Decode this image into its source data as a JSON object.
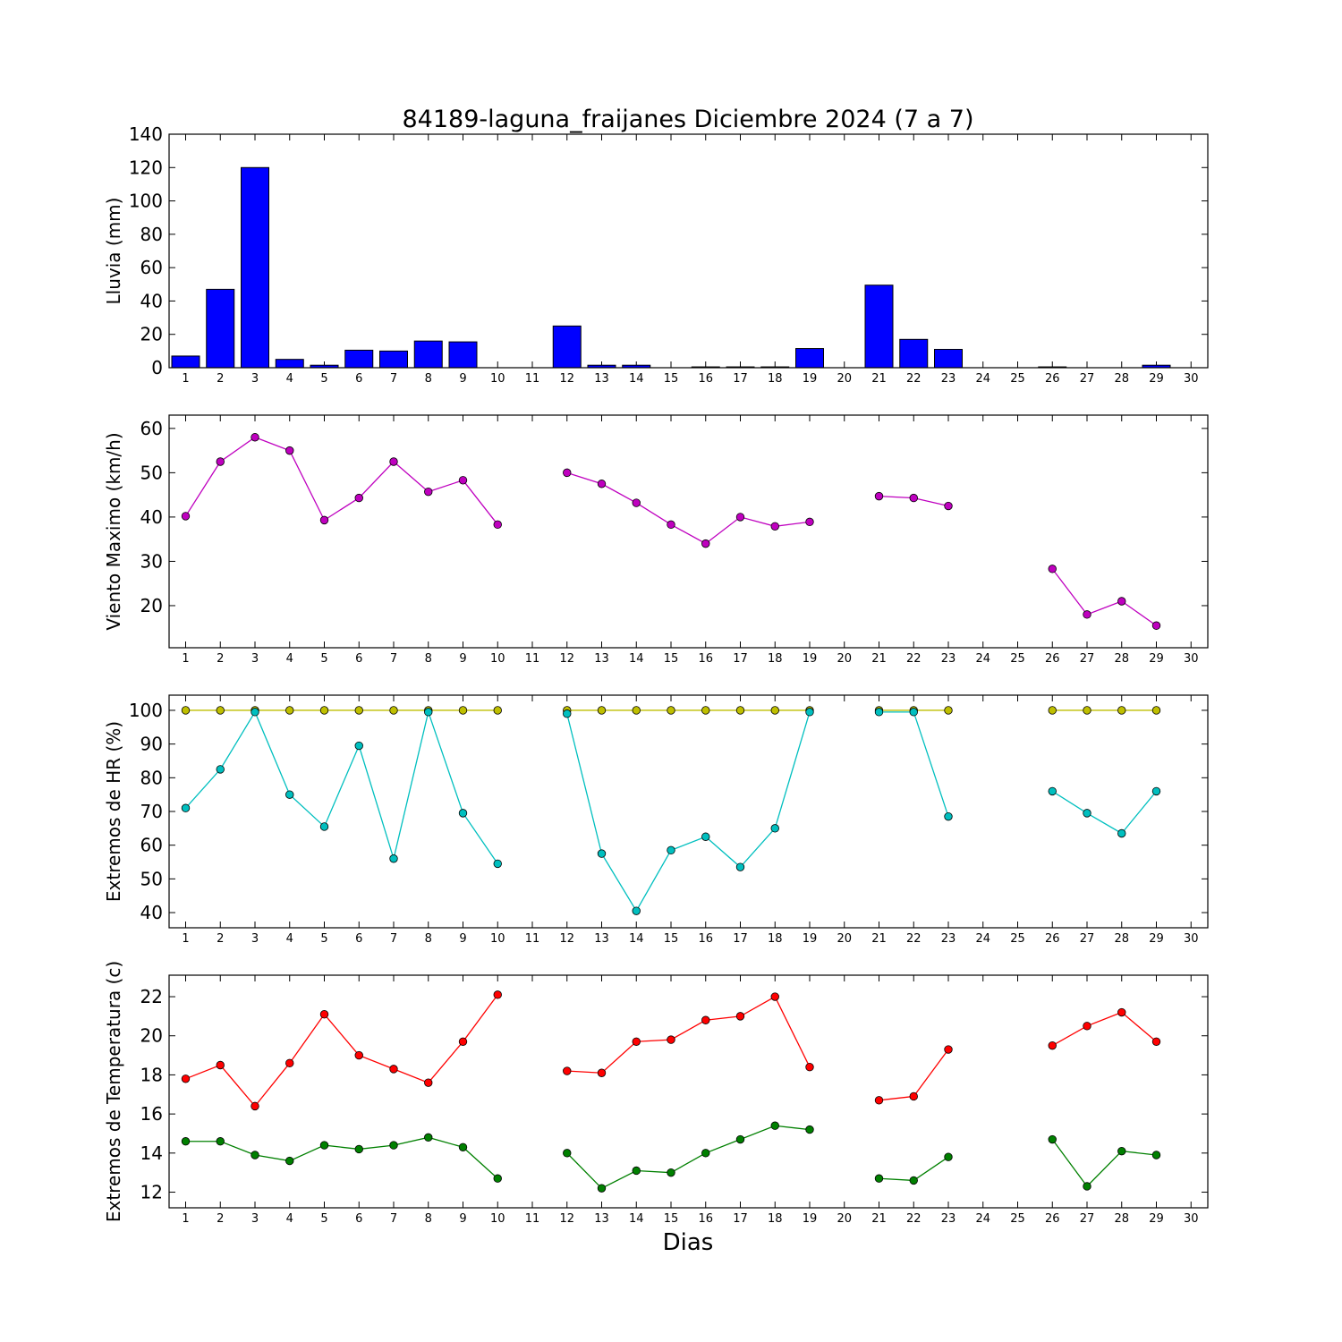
{
  "chart_data": [
    {
      "type": "bar",
      "title": "84189-laguna_fraijanes Diciembre 2024  (7 a 7)",
      "ylabel": "Lluvia (mm)",
      "xlabel": "",
      "categories": [
        "1",
        "2",
        "3",
        "4",
        "5",
        "6",
        "7",
        "8",
        "9",
        "10",
        "11",
        "12",
        "13",
        "14",
        "15",
        "16",
        "17",
        "18",
        "19",
        "20",
        "21",
        "22",
        "23",
        "24",
        "25",
        "26",
        "27",
        "28",
        "29",
        "30"
      ],
      "ylim": [
        0,
        140
      ],
      "yticks": [
        "0",
        "20",
        "40",
        "60",
        "80",
        "100",
        "120",
        "140"
      ],
      "color": "#0000ff",
      "values": [
        7,
        47,
        120,
        5,
        1.5,
        10.5,
        10,
        16,
        15.5,
        0,
        0,
        25,
        1.5,
        1.5,
        0,
        0.5,
        0.5,
        0.5,
        11.5,
        0,
        49.5,
        17,
        11,
        0,
        0,
        0.5,
        0,
        0,
        1.5,
        0
      ]
    },
    {
      "type": "line",
      "ylabel": "Viento Maximo (km/h)",
      "categories": [
        "1",
        "2",
        "3",
        "4",
        "5",
        "6",
        "7",
        "8",
        "9",
        "10",
        "11",
        "12",
        "13",
        "14",
        "15",
        "16",
        "17",
        "18",
        "19",
        "20",
        "21",
        "22",
        "23",
        "24",
        "25",
        "26",
        "27",
        "28",
        "29",
        "30"
      ],
      "ylim": [
        10.5,
        63
      ],
      "yticks": [
        "20",
        "30",
        "40",
        "50",
        "60"
      ],
      "series": [
        {
          "color": "#bf00bf",
          "values": [
            40.2,
            52.5,
            58,
            55,
            39.3,
            44.3,
            52.5,
            45.7,
            48.3,
            38.3,
            null,
            50,
            47.5,
            43.2,
            38.3,
            34,
            40,
            37.9,
            38.9,
            null,
            44.7,
            44.3,
            42.5,
            null,
            null,
            28.3,
            18,
            21,
            15.5,
            null
          ]
        }
      ]
    },
    {
      "type": "line",
      "ylabel": "Extremos de HR (%)",
      "categories": [
        "1",
        "2",
        "3",
        "4",
        "5",
        "6",
        "7",
        "8",
        "9",
        "10",
        "11",
        "12",
        "13",
        "14",
        "15",
        "16",
        "17",
        "18",
        "19",
        "20",
        "21",
        "22",
        "23",
        "24",
        "25",
        "26",
        "27",
        "28",
        "29",
        "30"
      ],
      "ylim": [
        35.5,
        104.5
      ],
      "yticks": [
        "40",
        "50",
        "60",
        "70",
        "80",
        "90",
        "100"
      ],
      "series": [
        {
          "color": "#bfbf00",
          "values": [
            100,
            100,
            100,
            100,
            100,
            100,
            100,
            100,
            100,
            100,
            null,
            100,
            100,
            100,
            100,
            100,
            100,
            100,
            100,
            null,
            100,
            100,
            100,
            null,
            null,
            100,
            100,
            100,
            100,
            null
          ]
        },
        {
          "color": "#00bfbf",
          "values": [
            71,
            82.5,
            99.5,
            75,
            65.5,
            89.5,
            56,
            99.5,
            69.5,
            54.5,
            null,
            99,
            57.5,
            40.5,
            58.5,
            62.5,
            53.5,
            65,
            99.5,
            null,
            99.5,
            99.5,
            68.5,
            null,
            null,
            76,
            69.5,
            63.5,
            76,
            null
          ]
        }
      ]
    },
    {
      "type": "line",
      "ylabel": "Extremos de Temperatura (c)",
      "xlabel": "Dias",
      "categories": [
        "1",
        "2",
        "3",
        "4",
        "5",
        "6",
        "7",
        "8",
        "9",
        "10",
        "11",
        "12",
        "13",
        "14",
        "15",
        "16",
        "17",
        "18",
        "19",
        "20",
        "21",
        "22",
        "23",
        "24",
        "25",
        "26",
        "27",
        "28",
        "29",
        "30"
      ],
      "ylim": [
        11.2,
        23.1
      ],
      "yticks": [
        "12",
        "14",
        "16",
        "18",
        "20",
        "22"
      ],
      "series": [
        {
          "color": "#ff0000",
          "values": [
            17.8,
            18.5,
            16.4,
            18.6,
            21.1,
            19,
            18.3,
            17.6,
            19.7,
            22.1,
            null,
            18.2,
            18.1,
            19.7,
            19.8,
            20.8,
            21,
            22,
            18.4,
            null,
            16.7,
            16.9,
            19.3,
            null,
            null,
            19.5,
            20.5,
            21.2,
            19.7,
            null
          ]
        },
        {
          "color": "#008000",
          "values": [
            14.6,
            14.6,
            13.9,
            13.6,
            14.4,
            14.2,
            14.4,
            14.8,
            14.3,
            12.7,
            null,
            14,
            12.2,
            13.1,
            13,
            14,
            14.7,
            15.4,
            15.2,
            null,
            12.7,
            12.6,
            13.8,
            null,
            null,
            14.7,
            12.3,
            14.1,
            13.9,
            null
          ]
        }
      ]
    }
  ]
}
